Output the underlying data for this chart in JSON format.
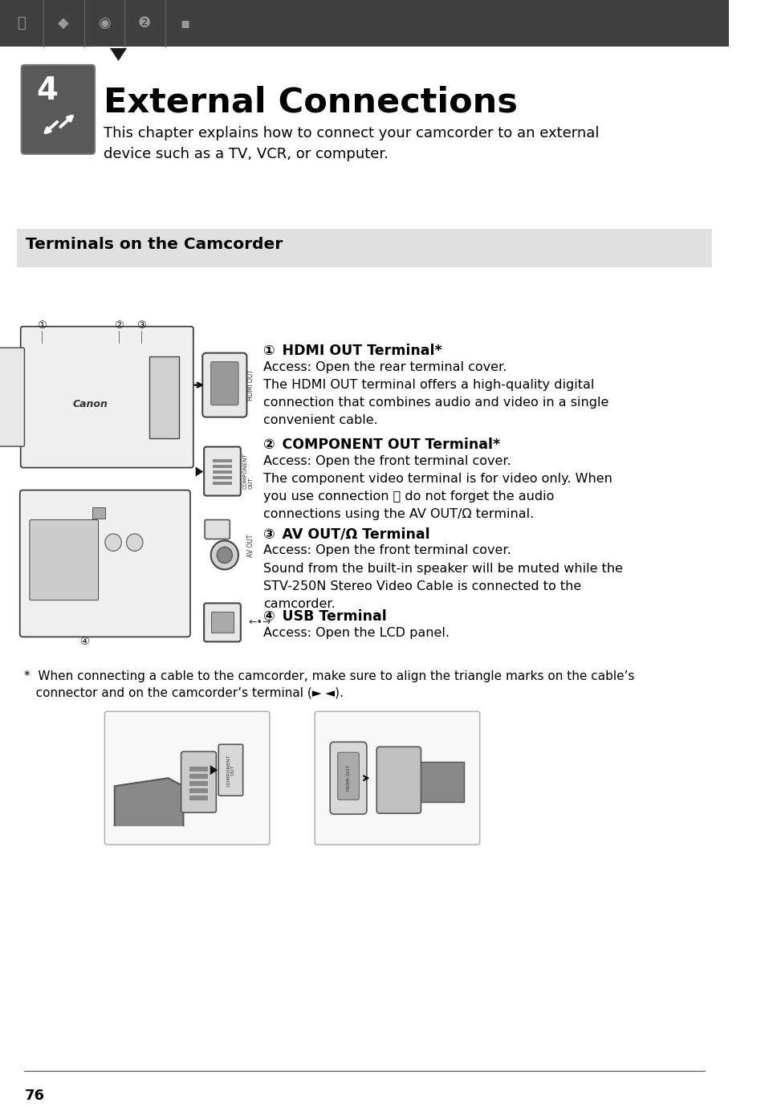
{
  "bg_color": "#ffffff",
  "header_bar_color": "#404040",
  "chapter_icon_bg": "#595959",
  "chapter_number": "4",
  "title": "External Connections",
  "subtitle": "This chapter explains how to connect your camcorder to an external\ndevice such as a TV, VCR, or computer.",
  "section_bg_color": "#e0e0e0",
  "section_title": "Terminals on the Camcorder",
  "footnote_line1": "*  When connecting a cable to the camcorder, make sure to align the triangle marks on the cable’s",
  "footnote_line2": "   connector and on the camcorder’s terminal (► ◄).",
  "page_number": "76",
  "text_color": "#000000",
  "term1_head": "HDMI OUT Terminal*",
  "term1_body": "Access: Open the rear terminal cover.\nThe HDMI OUT terminal offers a high-quality digital\nconnection that combines audio and video in a single\nconvenient cable.",
  "term2_head": "COMPONENT OUT Terminal*",
  "term2_body": "Access: Open the front terminal cover.\nThe component video terminal is for video only. When\nyou use connection Ⓑ do not forget the audio\nconnections using the AV OUT/Ω terminal.",
  "term3_head": "AV OUT/Ω Terminal",
  "term3_body": "Access: Open the front terminal cover.\nSound from the built-in speaker will be muted while the\nSTV-250N Stereo Video Cable is connected to the\ncamcorder.",
  "term4_head": "USB Terminal",
  "term4_body": "Access: Open the LCD panel."
}
